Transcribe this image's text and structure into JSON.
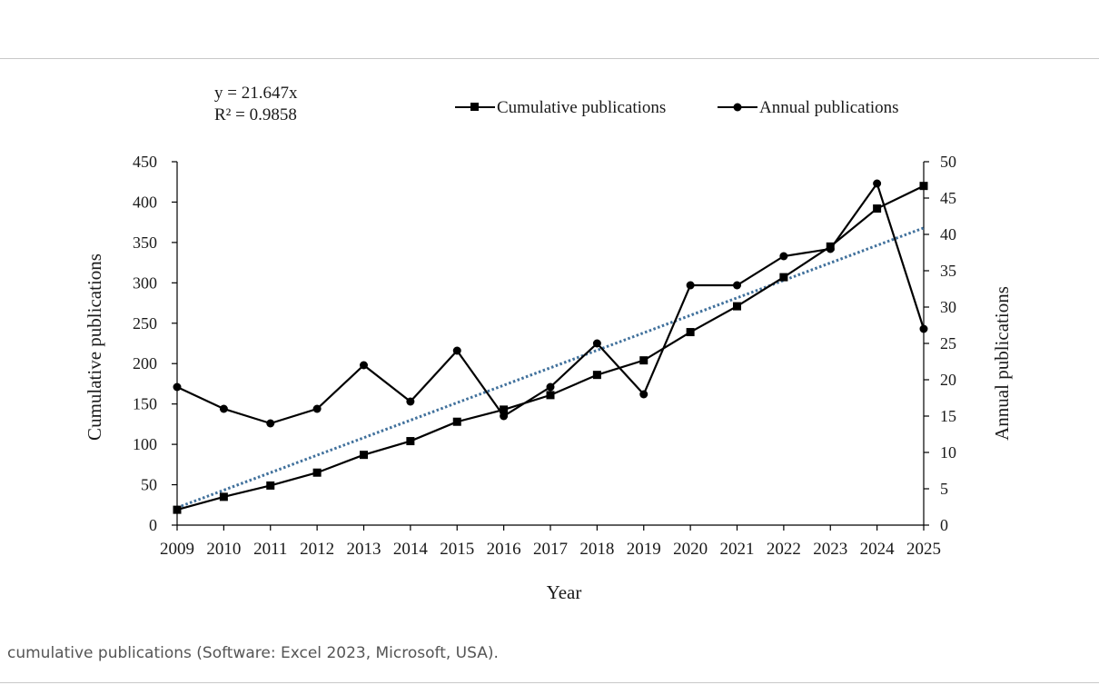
{
  "caption": "cumulative publications (Software: Excel 2023, Microsoft, USA).",
  "chart_data": {
    "type": "line",
    "xlabel": "Year",
    "ylabel_left": "Cumulative publications",
    "ylabel_right": "Annual publications",
    "categories": [
      "2009",
      "2010",
      "2011",
      "2012",
      "2013",
      "2014",
      "2015",
      "2016",
      "2017",
      "2018",
      "2019",
      "2020",
      "2021",
      "2022",
      "2023",
      "2024",
      "2025"
    ],
    "ylim_left": [
      0,
      450
    ],
    "ylim_right": [
      0,
      50
    ],
    "yticks_left": [
      "0",
      "50",
      "100",
      "150",
      "200",
      "250",
      "300",
      "350",
      "400",
      "450"
    ],
    "yticks_right": [
      "0",
      "5",
      "10",
      "15",
      "20",
      "25",
      "30",
      "35",
      "40",
      "45",
      "50"
    ],
    "grid": false,
    "legend_position": "top-right",
    "series": [
      {
        "name": "Cumulative publications",
        "axis": "left",
        "marker": "square",
        "color": "#000000",
        "values": [
          19,
          35,
          49,
          65,
          87,
          104,
          128,
          143,
          161,
          186,
          204,
          239,
          271,
          307,
          345,
          392,
          420
        ]
      },
      {
        "name": "Annual publications",
        "axis": "right",
        "marker": "circle",
        "color": "#000000",
        "values": [
          19,
          16,
          14,
          16,
          22,
          17,
          24,
          15,
          19,
          25,
          18,
          33,
          33,
          37,
          38,
          47,
          27
        ]
      }
    ],
    "trendline": {
      "axis": "left",
      "style": "dotted",
      "color": "#41719c",
      "equation": "y = 21.647x",
      "r_squared": "R² = 0.9858",
      "slope": 21.647
    }
  }
}
